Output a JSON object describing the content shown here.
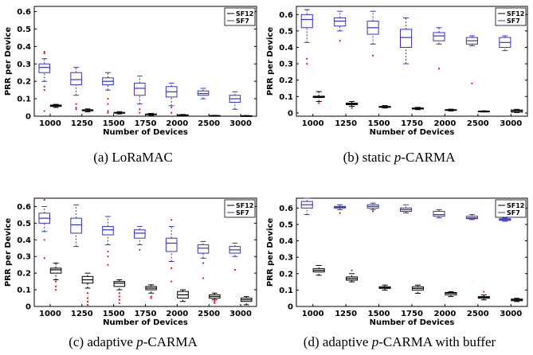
{
  "colors": {
    "sf12": "#000000",
    "sf7": "#3333cc",
    "outlier": "#e0101a",
    "axis": "#000000"
  },
  "chart_data": [
    {
      "type": "box",
      "panel": "a",
      "caption": {
        "prefix": "(a) ",
        "italic": "",
        "suffix": "LoRaMAC"
      },
      "xlabel": "Number of Devices",
      "ylabel": "PRR per Device",
      "categories": [
        "1000",
        "1250",
        "1500",
        "1750",
        "2000",
        "2500",
        "3000"
      ],
      "yticks": [
        "0",
        "0.1",
        "0.2",
        "0.3",
        "0.4",
        "0.5",
        "0.6"
      ],
      "ylim": [
        0,
        0.63
      ],
      "legend": {
        "placement": "top-right",
        "entries": [
          "SF12",
          "SF7"
        ]
      },
      "series": [
        {
          "name": "SF12",
          "color": "#000000",
          "boxes": [
            {
              "whislo": 0.05,
              "q1": 0.056,
              "med": 0.06,
              "q3": 0.064,
              "whishi": 0.068,
              "fliers": []
            },
            {
              "whislo": 0.025,
              "q1": 0.031,
              "med": 0.034,
              "q3": 0.037,
              "whishi": 0.042,
              "fliers": []
            },
            {
              "whislo": 0.013,
              "q1": 0.018,
              "med": 0.02,
              "q3": 0.022,
              "whishi": 0.026,
              "fliers": []
            },
            {
              "whislo": 0.005,
              "q1": 0.009,
              "med": 0.011,
              "q3": 0.013,
              "whishi": 0.016,
              "fliers": []
            },
            {
              "whislo": 0.002,
              "q1": 0.005,
              "med": 0.006,
              "q3": 0.008,
              "whishi": 0.01,
              "fliers": []
            },
            {
              "whislo": 0.001,
              "q1": 0.002,
              "med": 0.003,
              "q3": 0.004,
              "whishi": 0.005,
              "fliers": []
            },
            {
              "whislo": 0.0,
              "q1": 0.001,
              "med": 0.002,
              "q3": 0.003,
              "whishi": 0.004,
              "fliers": []
            }
          ]
        },
        {
          "name": "SF7",
          "color": "#3333cc",
          "boxes": [
            {
              "whislo": 0.2,
              "q1": 0.25,
              "med": 0.28,
              "q3": 0.3,
              "whishi": 0.33,
              "fliers": [
                0.37,
                0.36,
                0.17,
                0.15,
                0.03
              ]
            },
            {
              "whislo": 0.12,
              "q1": 0.18,
              "med": 0.21,
              "q3": 0.25,
              "whishi": 0.28,
              "fliers": [
                0.07,
                0.05,
                0.04
              ]
            },
            {
              "whislo": 0.15,
              "q1": 0.18,
              "med": 0.2,
              "q3": 0.22,
              "whishi": 0.25,
              "fliers": [
                0.1,
                0.07,
                0.03,
                0.02
              ]
            },
            {
              "whislo": 0.07,
              "q1": 0.12,
              "med": 0.16,
              "q3": 0.19,
              "whishi": 0.23,
              "fliers": [
                0.04,
                0.02
              ]
            },
            {
              "whislo": 0.06,
              "q1": 0.11,
              "med": 0.14,
              "q3": 0.17,
              "whishi": 0.19,
              "fliers": [
                0.05,
                0.02
              ]
            },
            {
              "whislo": 0.1,
              "q1": 0.12,
              "med": 0.13,
              "q3": 0.145,
              "whishi": 0.16,
              "fliers": []
            },
            {
              "whislo": 0.04,
              "q1": 0.08,
              "med": 0.1,
              "q3": 0.12,
              "whishi": 0.14,
              "fliers": []
            }
          ]
        }
      ]
    },
    {
      "type": "box",
      "panel": "b",
      "caption": {
        "prefix": "(b) static ",
        "italic": "p",
        "suffix": "-CARMA"
      },
      "xlabel": "Number of Devices",
      "ylabel": "PRR per Device",
      "categories": [
        "1000",
        "1250",
        "1500",
        "1750",
        "2000",
        "2500",
        "3000"
      ],
      "yticks": [
        "0",
        "0.1",
        "0.2",
        "0.3",
        "0.4",
        "0.5",
        "0.6"
      ],
      "ylim": [
        -0.02,
        0.65
      ],
      "legend": {
        "placement": "top-right",
        "entries": [
          "SF12",
          "SF7"
        ]
      },
      "series": [
        {
          "name": "SF12",
          "color": "#000000",
          "boxes": [
            {
              "whislo": 0.07,
              "q1": 0.094,
              "med": 0.098,
              "q3": 0.102,
              "whishi": 0.13,
              "fliers": [
                0.06
              ]
            },
            {
              "whislo": 0.04,
              "q1": 0.05,
              "med": 0.055,
              "q3": 0.06,
              "whishi": 0.07,
              "fliers": [
                0.03
              ]
            },
            {
              "whislo": 0.03,
              "q1": 0.034,
              "med": 0.037,
              "q3": 0.04,
              "whishi": 0.045,
              "fliers": []
            },
            {
              "whislo": 0.02,
              "q1": 0.024,
              "med": 0.027,
              "q3": 0.03,
              "whishi": 0.034,
              "fliers": []
            },
            {
              "whislo": 0.012,
              "q1": 0.016,
              "med": 0.018,
              "q3": 0.02,
              "whishi": 0.023,
              "fliers": []
            },
            {
              "whislo": 0.006,
              "q1": 0.009,
              "med": 0.01,
              "q3": 0.011,
              "whishi": 0.013,
              "fliers": []
            },
            {
              "whislo": 0.002,
              "q1": 0.005,
              "med": 0.012,
              "q3": 0.018,
              "whishi": 0.022,
              "fliers": []
            }
          ]
        },
        {
          "name": "SF7",
          "color": "#3333cc",
          "boxes": [
            {
              "whislo": 0.43,
              "q1": 0.52,
              "med": 0.57,
              "q3": 0.6,
              "whishi": 0.63,
              "fliers": [
                0.33,
                0.3
              ]
            },
            {
              "whislo": 0.5,
              "q1": 0.53,
              "med": 0.56,
              "q3": 0.58,
              "whishi": 0.62,
              "fliers": [
                0.44
              ]
            },
            {
              "whislo": 0.42,
              "q1": 0.48,
              "med": 0.52,
              "q3": 0.56,
              "whishi": 0.62,
              "fliers": [
                0.35
              ]
            },
            {
              "whislo": 0.3,
              "q1": 0.4,
              "med": 0.46,
              "q3": 0.51,
              "whishi": 0.58,
              "fliers": []
            },
            {
              "whislo": 0.42,
              "q1": 0.44,
              "med": 0.47,
              "q3": 0.49,
              "whishi": 0.52,
              "fliers": [
                0.27
              ]
            },
            {
              "whislo": 0.41,
              "q1": 0.42,
              "med": 0.44,
              "q3": 0.46,
              "whishi": 0.47,
              "fliers": [
                0.18
              ]
            },
            {
              "whislo": 0.38,
              "q1": 0.4,
              "med": 0.43,
              "q3": 0.46,
              "whishi": 0.47,
              "fliers": []
            }
          ]
        }
      ]
    },
    {
      "type": "box",
      "panel": "c",
      "caption": {
        "prefix": "(c) adaptive ",
        "italic": "p",
        "suffix": "-CARMA"
      },
      "xlabel": "Number of Devices",
      "ylabel": "PRR per Device",
      "categories": [
        "1000",
        "1250",
        "1500",
        "1750",
        "2000",
        "2500",
        "3000"
      ],
      "yticks": [
        "0",
        "0.1",
        "0.2",
        "0.3",
        "0.4",
        "0.5",
        "0.6"
      ],
      "ylim": [
        0,
        0.65
      ],
      "legend": {
        "placement": "top-right",
        "entries": [
          "SF12",
          "SF7"
        ]
      },
      "series": [
        {
          "name": "SF12",
          "color": "#000000",
          "boxes": [
            {
              "whislo": 0.16,
              "q1": 0.2,
              "med": 0.22,
              "q3": 0.23,
              "whishi": 0.26,
              "fliers": [
                0.15,
                0.12,
                0.1
              ]
            },
            {
              "whislo": 0.11,
              "q1": 0.14,
              "med": 0.16,
              "q3": 0.18,
              "whishi": 0.2,
              "fliers": [
                0.08,
                0.05,
                0.03,
                0.01
              ]
            },
            {
              "whislo": 0.1,
              "q1": 0.12,
              "med": 0.14,
              "q3": 0.15,
              "whishi": 0.16,
              "fliers": [
                0.08,
                0.06,
                0.04,
                0.02
              ]
            },
            {
              "whislo": 0.08,
              "q1": 0.1,
              "med": 0.11,
              "q3": 0.12,
              "whishi": 0.13,
              "fliers": [
                0.06,
                0.05
              ]
            },
            {
              "whislo": 0.03,
              "q1": 0.05,
              "med": 0.07,
              "q3": 0.09,
              "whishi": 0.1,
              "fliers": []
            },
            {
              "whislo": 0.04,
              "q1": 0.05,
              "med": 0.06,
              "q3": 0.07,
              "whishi": 0.08,
              "fliers": [
                0.04,
                0.03,
                0.02
              ]
            },
            {
              "whislo": 0.01,
              "q1": 0.03,
              "med": 0.04,
              "q3": 0.05,
              "whishi": 0.06,
              "fliers": []
            }
          ]
        },
        {
          "name": "SF7",
          "color": "#3333cc",
          "boxes": [
            {
              "whislo": 0.45,
              "q1": 0.5,
              "med": 0.53,
              "q3": 0.56,
              "whishi": 0.6,
              "fliers": [
                0.64,
                0.4,
                0.29
              ]
            },
            {
              "whislo": 0.36,
              "q1": 0.44,
              "med": 0.49,
              "q3": 0.53,
              "whishi": 0.61,
              "fliers": []
            },
            {
              "whislo": 0.37,
              "q1": 0.43,
              "med": 0.46,
              "q3": 0.48,
              "whishi": 0.54,
              "fliers": [
                0.33,
                0.3,
                0.25
              ]
            },
            {
              "whislo": 0.37,
              "q1": 0.41,
              "med": 0.44,
              "q3": 0.46,
              "whishi": 0.48,
              "fliers": [
                0.34
              ]
            },
            {
              "whislo": 0.27,
              "q1": 0.33,
              "med": 0.38,
              "q3": 0.41,
              "whishi": 0.48,
              "fliers": [
                0.52,
                0.23,
                0.15
              ]
            },
            {
              "whislo": 0.29,
              "q1": 0.32,
              "med": 0.35,
              "q3": 0.37,
              "whishi": 0.39,
              "fliers": [
                0.26,
                0.17
              ]
            },
            {
              "whislo": 0.3,
              "q1": 0.32,
              "med": 0.34,
              "q3": 0.36,
              "whishi": 0.38,
              "fliers": [
                0.22
              ]
            }
          ]
        }
      ]
    },
    {
      "type": "box",
      "panel": "d",
      "caption": {
        "prefix": "(d) adaptive ",
        "italic": "p",
        "suffix": "-CARMA with buffer"
      },
      "xlabel": "Number of Devices",
      "ylabel": "PRR per Device",
      "categories": [
        "1000",
        "1250",
        "1500",
        "1750",
        "2000",
        "2500",
        "3000"
      ],
      "yticks": [
        "0",
        "0.1",
        "0.2",
        "0.3",
        "0.4",
        "0.5",
        "0.6"
      ],
      "ylim": [
        0,
        0.66
      ],
      "legend": {
        "placement": "top-right",
        "entries": [
          "SF12",
          "SF7"
        ]
      },
      "series": [
        {
          "name": "SF12",
          "color": "#000000",
          "boxes": [
            {
              "whislo": 0.19,
              "q1": 0.21,
              "med": 0.22,
              "q3": 0.23,
              "whishi": 0.25,
              "fliers": []
            },
            {
              "whislo": 0.15,
              "q1": 0.16,
              "med": 0.17,
              "q3": 0.18,
              "whishi": 0.2,
              "fliers": [
                0.22
              ]
            },
            {
              "whislo": 0.1,
              "q1": 0.11,
              "med": 0.115,
              "q3": 0.12,
              "whishi": 0.13,
              "fliers": []
            },
            {
              "whislo": 0.08,
              "q1": 0.1,
              "med": 0.11,
              "q3": 0.12,
              "whishi": 0.13,
              "fliers": []
            },
            {
              "whislo": 0.06,
              "q1": 0.07,
              "med": 0.08,
              "q3": 0.085,
              "whishi": 0.09,
              "fliers": []
            },
            {
              "whislo": 0.04,
              "q1": 0.05,
              "med": 0.055,
              "q3": 0.06,
              "whishi": 0.07,
              "fliers": [
                0.09
              ]
            },
            {
              "whislo": 0.03,
              "q1": 0.035,
              "med": 0.04,
              "q3": 0.045,
              "whishi": 0.05,
              "fliers": []
            }
          ]
        },
        {
          "name": "SF7",
          "color": "#3333cc",
          "boxes": [
            {
              "whislo": 0.56,
              "q1": 0.6,
              "med": 0.62,
              "q3": 0.64,
              "whishi": 0.66,
              "fliers": []
            },
            {
              "whislo": 0.59,
              "q1": 0.6,
              "med": 0.605,
              "q3": 0.61,
              "whishi": 0.62,
              "fliers": [
                0.57
              ]
            },
            {
              "whislo": 0.59,
              "q1": 0.6,
              "med": 0.61,
              "q3": 0.62,
              "whishi": 0.63,
              "fliers": [
                0.58
              ]
            },
            {
              "whislo": 0.57,
              "q1": 0.58,
              "med": 0.59,
              "q3": 0.6,
              "whishi": 0.62,
              "fliers": []
            },
            {
              "whislo": 0.54,
              "q1": 0.55,
              "med": 0.56,
              "q3": 0.58,
              "whishi": 0.59,
              "fliers": []
            },
            {
              "whislo": 0.53,
              "q1": 0.535,
              "med": 0.54,
              "q3": 0.55,
              "whishi": 0.56,
              "fliers": []
            },
            {
              "whislo": 0.52,
              "q1": 0.525,
              "med": 0.53,
              "q3": 0.535,
              "whishi": 0.54,
              "fliers": []
            }
          ]
        }
      ]
    }
  ]
}
